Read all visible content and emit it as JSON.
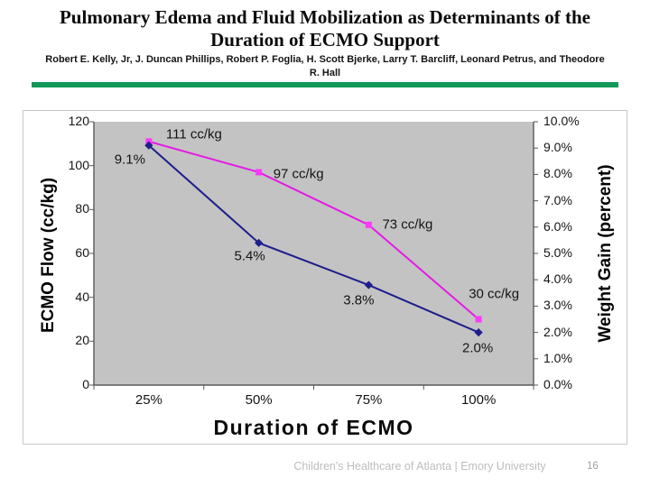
{
  "header": {
    "title": "Pulmonary Edema and Fluid Mobilization as Determinants of the Duration of ECMO Support",
    "authors": "Robert E. Kelly, Jr, J. Duncan Phillips, Robert P. Foglia, H. Scott Bjerke, Larry T. Barcliff, Leonard Petrus, and Theodore R. Hall"
  },
  "colors": {
    "accent_green": "#12995A",
    "magenta_line": "#E51AE5",
    "navy_line": "#1E1E8C",
    "plot_background": "#C3C3C3"
  },
  "chart_data": {
    "type": "line",
    "x_categories": [
      "25%",
      "50%",
      "75%",
      "100%"
    ],
    "xlabel": "Duration of ECMO",
    "left_axis": {
      "title": "ECMO Flow (cc/kg)",
      "min": 0,
      "max": 120,
      "step": 20,
      "ticks": [
        "0",
        "20",
        "40",
        "60",
        "80",
        "100",
        "120"
      ]
    },
    "right_axis": {
      "title": "Weight Gain (percent)",
      "min": 0,
      "max": 10,
      "step": 1,
      "ticks": [
        "0.0%",
        "1.0%",
        "2.0%",
        "3.0%",
        "4.0%",
        "5.0%",
        "6.0%",
        "7.0%",
        "8.0%",
        "9.0%",
        "10.0%"
      ]
    },
    "series": [
      {
        "name": "ECMO Flow (cc/kg)",
        "axis": "left",
        "marker": "square",
        "color": "#E51AE5",
        "marker_color": "#FB3AFB",
        "values": [
          111,
          97,
          73,
          30
        ],
        "point_labels": [
          "111 cc/kg",
          "97 cc/kg",
          "73 cc/kg",
          "30 cc/kg"
        ]
      },
      {
        "name": "Weight Gain (percent)",
        "axis": "right",
        "marker": "diamond",
        "color": "#1E1E8C",
        "marker_color": "#1E1E8C",
        "values": [
          9.1,
          5.4,
          3.8,
          2.0
        ],
        "point_labels": [
          "9.1%",
          "5.4%",
          "3.8%",
          "2.0%"
        ]
      }
    ],
    "plot_bg": "#C3C3C3",
    "grid": false,
    "legend": "none",
    "layout": {
      "label_offsets": [
        [
          [
            50,
            -8
          ],
          [
            44,
            2
          ],
          [
            43,
            0
          ],
          [
            17,
            -28
          ]
        ],
        [
          [
            -21,
            16
          ],
          [
            -10,
            15
          ],
          [
            -11,
            17
          ],
          [
            -1,
            17
          ]
        ]
      ]
    }
  },
  "footer": {
    "text": "Children's Healthcare of Atlanta | Emory University",
    "page_number": "16"
  }
}
